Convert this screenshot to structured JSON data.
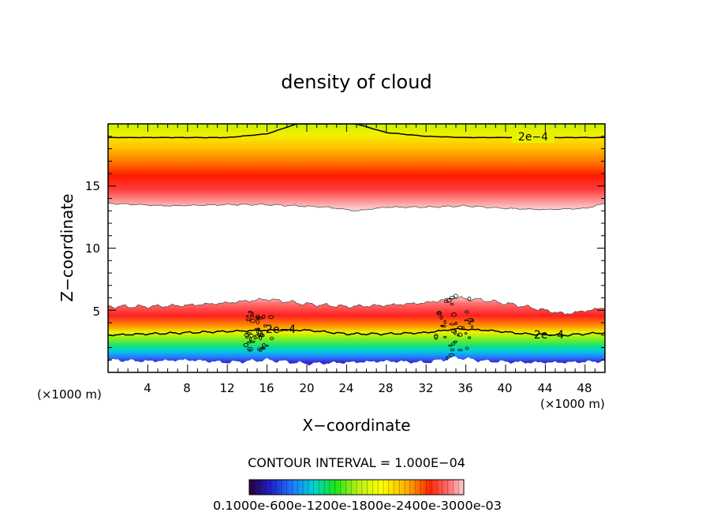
{
  "chart_data": {
    "type": "heatmap",
    "title": "density of cloud",
    "xlabel": "X−coordinate",
    "ylabel": "Z−coordinate",
    "x_unit_left": "(×1000 m)",
    "x_unit_right": "(×1000 m)",
    "xlim": [
      0,
      50
    ],
    "ylim": [
      0,
      20
    ],
    "x_ticks": [
      4,
      8,
      12,
      16,
      20,
      24,
      28,
      32,
      36,
      40,
      44,
      48
    ],
    "y_ticks": [
      5,
      10,
      15
    ],
    "contour_interval_text": "CONTOUR INTERVAL = 1.000E−04",
    "contour_labels": [
      "2e−4",
      "2e−4",
      "2e−4"
    ],
    "colorbar_labels_text": "0.1000e-600e-1200e-1800e-2400e-3000e-03",
    "colorbar_range": [
      0.0001,
      0.003
    ],
    "cloud_layers": [
      {
        "name": "upper layer",
        "x": [
          0,
          6,
          12,
          16,
          19,
          22,
          25,
          28,
          32,
          36,
          40,
          44,
          48,
          50
        ],
        "z_bottom": [
          13.6,
          13.4,
          13.5,
          13.5,
          13.4,
          13.3,
          13.0,
          13.3,
          13.3,
          13.4,
          13.2,
          13.1,
          13.2,
          13.6
        ],
        "z_core": [
          15.5,
          15.5,
          15.5,
          15.4,
          15.3,
          15.2,
          15.0,
          15.1,
          15.4,
          15.5,
          15.6,
          15.6,
          15.6,
          15.6
        ],
        "z_contour_2e4": [
          18.9,
          18.9,
          18.9,
          19.2,
          20.0,
          20.0,
          20.0,
          19.3,
          19.0,
          18.9,
          18.9,
          18.9,
          18.9,
          18.9
        ]
      },
      {
        "name": "lower layer",
        "x": [
          0,
          4,
          8,
          12,
          16,
          20,
          24,
          28,
          32,
          35,
          38,
          42,
          46,
          50
        ],
        "z_bottom": [
          1.0,
          0.9,
          1.0,
          0.8,
          1.0,
          0.7,
          0.8,
          0.9,
          0.8,
          1.2,
          0.9,
          0.8,
          0.8,
          0.9
        ],
        "z_top": [
          5.3,
          5.3,
          5.4,
          5.6,
          5.9,
          5.5,
          5.3,
          5.4,
          5.6,
          6.0,
          5.8,
          5.3,
          4.7,
          5.2
        ],
        "z_contour_2e4": [
          3.0,
          3.1,
          3.2,
          3.3,
          3.4,
          3.4,
          3.1,
          3.1,
          3.2,
          3.5,
          3.4,
          3.1,
          3.0,
          3.2
        ]
      }
    ]
  },
  "colors": {
    "colormap": [
      "#2a003a",
      "#2020c8",
      "#1e78ff",
      "#00d2d2",
      "#19e619",
      "#78f01e",
      "#d2f000",
      "#ffff00",
      "#ffaa00",
      "#ff5000",
      "#ff0000",
      "#ff7878",
      "#ffc8c8",
      "#ffffff"
    ]
  }
}
